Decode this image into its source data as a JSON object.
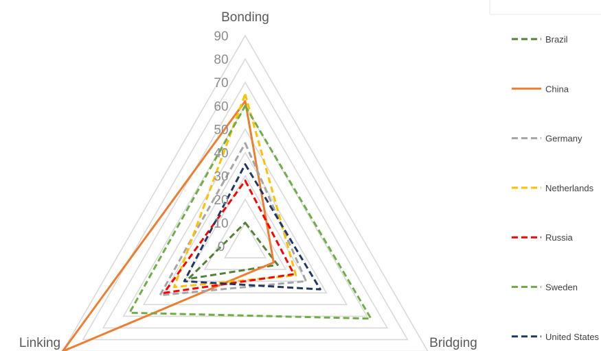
{
  "chart_data": {
    "type": "radar",
    "title": "",
    "axes": [
      "Bonding",
      "Bridging",
      "Linking"
    ],
    "ticks": [
      0,
      10,
      20,
      30,
      40,
      50,
      60,
      70,
      80,
      90
    ],
    "range": [
      0,
      90
    ],
    "grid": true,
    "legend_position": "right",
    "series": [
      {
        "name": "Brazil",
        "values": [
          10,
          16,
          28
        ],
        "color": "#548235",
        "dash": true
      },
      {
        "name": "China",
        "values": [
          62,
          14,
          90
        ],
        "color": "#ed7d31",
        "dash": false
      },
      {
        "name": "Germany",
        "values": [
          44,
          30,
          42
        ],
        "color": "#a5a5a5",
        "dash": true
      },
      {
        "name": "Netherlands",
        "values": [
          65,
          25,
          35
        ],
        "color": "#ffc000",
        "dash": true
      },
      {
        "name": "Russia",
        "values": [
          28,
          24,
          40
        ],
        "color": "#ff0000",
        "dash": true
      },
      {
        "name": "Sweden",
        "values": [
          60,
          62,
          57
        ],
        "color": "#70ad47",
        "dash": true
      },
      {
        "name": "United States",
        "values": [
          35,
          37,
          30
        ],
        "color": "#1f3864",
        "dash": true
      }
    ]
  }
}
